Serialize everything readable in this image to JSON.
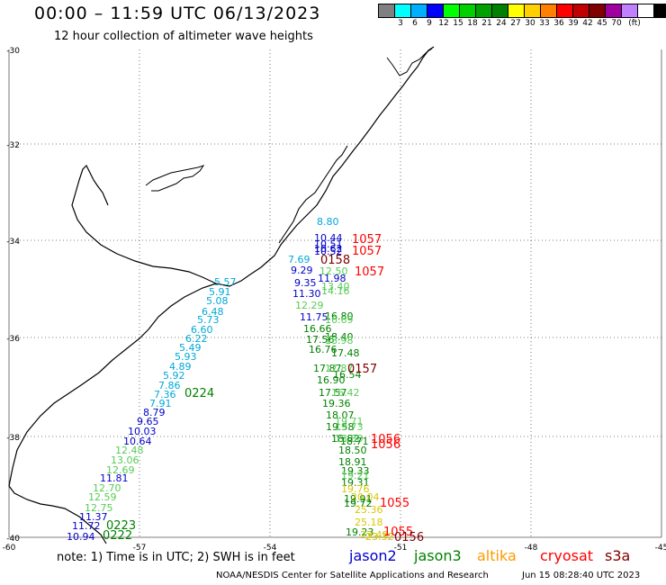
{
  "title": "00:00 – 11:59 UTC 06/13/2023",
  "subtitle": "12 hour collection of altimeter wave heights",
  "legend": {
    "unit": "(ft)",
    "swatches": [
      {
        "color": "#808080",
        "label": ""
      },
      {
        "color": "#00ffff",
        "label": "3"
      },
      {
        "color": "#00b0ff",
        "label": "6"
      },
      {
        "color": "#0000ff",
        "label": "9"
      },
      {
        "color": "#00ff00",
        "label": "12"
      },
      {
        "color": "#00d000",
        "label": "15"
      },
      {
        "color": "#00a000",
        "label": "18"
      },
      {
        "color": "#008000",
        "label": "21"
      },
      {
        "color": "#ffff00",
        "label": "24"
      },
      {
        "color": "#ffd000",
        "label": "27"
      },
      {
        "color": "#ff8000",
        "label": "30"
      },
      {
        "color": "#ff0000",
        "label": "33"
      },
      {
        "color": "#c00000",
        "label": "36"
      },
      {
        "color": "#800000",
        "label": "39"
      },
      {
        "color": "#a000a0",
        "label": "42"
      },
      {
        "color": "#c080ff",
        "label": "45"
      },
      {
        "color": "#ffffff",
        "label": "70"
      },
      {
        "color": "#000000",
        "label": ""
      }
    ]
  },
  "axes": {
    "lat_labels": [
      "-30",
      "-32",
      "-34",
      "-36",
      "-38",
      "-40"
    ],
    "lon_labels": [
      "-60",
      "-57",
      "-54",
      "-51",
      "-48",
      "-45"
    ]
  },
  "colors": {
    "jason2": "#0000c8",
    "jason3": "#008000",
    "altika": "#ff9900",
    "cryosat": "#ff0000",
    "s3a": "#800000",
    "cyan": "#00a8d8",
    "lightgreen": "#55cc55",
    "yellow": "#d8c800",
    "coast": "#000000",
    "grid": "#555555"
  },
  "track_values": [
    {
      "text": "8.80",
      "c": "cyan"
    },
    {
      "text": "10.44",
      "c": "jason2"
    },
    {
      "text": "10.51",
      "c": "jason2"
    },
    {
      "text": "10.62",
      "c": "jason2"
    },
    {
      "text": "10.52",
      "c": "jason2"
    },
    {
      "text": "7.69",
      "c": "cyan"
    },
    {
      "text": "9.29",
      "c": "jason2"
    },
    {
      "text": "12.50",
      "c": "lightgreen"
    },
    {
      "text": "11.98",
      "c": "jason2"
    },
    {
      "text": "9.35",
      "c": "jason2"
    },
    {
      "text": "13.40",
      "c": "lightgreen"
    },
    {
      "text": "14.16",
      "c": "lightgreen"
    },
    {
      "text": "11.30",
      "c": "jason2"
    },
    {
      "text": "12.29",
      "c": "lightgreen"
    },
    {
      "text": "11.75",
      "c": "jason2"
    },
    {
      "text": "16.80",
      "c": "jason3"
    },
    {
      "text": "16.69",
      "c": "lightgreen"
    },
    {
      "text": "16.66",
      "c": "jason3"
    },
    {
      "text": "17.56",
      "c": "jason3"
    },
    {
      "text": "18.40",
      "c": "jason3"
    },
    {
      "text": "18.98",
      "c": "lightgreen"
    },
    {
      "text": "16.76",
      "c": "jason3"
    },
    {
      "text": "17.48",
      "c": "jason3"
    },
    {
      "text": "17.87",
      "c": "jason3"
    },
    {
      "text": "17.87",
      "c": "lightgreen"
    },
    {
      "text": "16.54",
      "c": "jason3"
    },
    {
      "text": "16.90",
      "c": "jason3"
    },
    {
      "text": "17.57",
      "c": "jason3"
    },
    {
      "text": "16.42",
      "c": "lightgreen"
    },
    {
      "text": "19.36",
      "c": "jason3"
    },
    {
      "text": "18.07",
      "c": "jason3"
    },
    {
      "text": "19.71",
      "c": "lightgreen"
    },
    {
      "text": "19.58",
      "c": "jason3"
    },
    {
      "text": "19.73",
      "c": "lightgreen"
    },
    {
      "text": "18.82",
      "c": "jason3"
    },
    {
      "text": "18.80",
      "c": "lightgreen"
    },
    {
      "text": "18.71",
      "c": "jason3"
    },
    {
      "text": "18.50",
      "c": "jason3"
    },
    {
      "text": "18.91",
      "c": "jason3"
    },
    {
      "text": "19.33",
      "c": "jason3"
    },
    {
      "text": "19.21",
      "c": "lightgreen"
    },
    {
      "text": "19.31",
      "c": "jason3"
    },
    {
      "text": "19.76",
      "c": "yellow"
    },
    {
      "text": "19.91",
      "c": "jason3"
    },
    {
      "text": "20.04",
      "c": "yellow"
    },
    {
      "text": "19.72",
      "c": "jason3"
    },
    {
      "text": "25.36",
      "c": "yellow"
    },
    {
      "text": "25.18",
      "c": "yellow"
    },
    {
      "text": "19.23",
      "c": "jason3"
    },
    {
      "text": "23.49",
      "c": "yellow"
    },
    {
      "text": "23.32",
      "c": "yellow"
    },
    {
      "text": "5.57",
      "c": "cyan"
    },
    {
      "text": "5.91",
      "c": "cyan"
    },
    {
      "text": "5.08",
      "c": "cyan"
    },
    {
      "text": "6.48",
      "c": "cyan"
    },
    {
      "text": "5.73",
      "c": "cyan"
    },
    {
      "text": "6.60",
      "c": "cyan"
    },
    {
      "text": "6.22",
      "c": "cyan"
    },
    {
      "text": "5.49",
      "c": "cyan"
    },
    {
      "text": "5.93",
      "c": "cyan"
    },
    {
      "text": "4.89",
      "c": "cyan"
    },
    {
      "text": "5.92",
      "c": "cyan"
    },
    {
      "text": "7.86",
      "c": "cyan"
    },
    {
      "text": "7.36",
      "c": "cyan"
    },
    {
      "text": "7.91",
      "c": "cyan"
    },
    {
      "text": "8.79",
      "c": "jason2"
    },
    {
      "text": "9.65",
      "c": "jason2"
    },
    {
      "text": "10.03",
      "c": "jason2"
    },
    {
      "text": "10.64",
      "c": "jason2"
    },
    {
      "text": "12.48",
      "c": "lightgreen"
    },
    {
      "text": "13.06",
      "c": "lightgreen"
    },
    {
      "text": "12.69",
      "c": "lightgreen"
    },
    {
      "text": "11.81",
      "c": "jason2"
    },
    {
      "text": "12.70",
      "c": "lightgreen"
    },
    {
      "text": "12.59",
      "c": "lightgreen"
    },
    {
      "text": "12.75",
      "c": "lightgreen"
    },
    {
      "text": "11.37",
      "c": "jason2"
    },
    {
      "text": "11.72",
      "c": "jason2"
    },
    {
      "text": "10.94",
      "c": "jason2"
    }
  ],
  "time_labels": [
    {
      "text": "1057",
      "c": "cryosat"
    },
    {
      "text": "1057",
      "c": "cryosat"
    },
    {
      "text": "0158",
      "c": "s3a"
    },
    {
      "text": "1057",
      "c": "cryosat"
    },
    {
      "text": "0157",
      "c": "s3a"
    },
    {
      "text": "1056",
      "c": "cryosat"
    },
    {
      "text": "1056",
      "c": "cryosat"
    },
    {
      "text": "1055",
      "c": "cryosat"
    },
    {
      "text": "1055",
      "c": "cryosat"
    },
    {
      "text": "0156",
      "c": "s3a"
    },
    {
      "text": "0224",
      "c": "jason3"
    },
    {
      "text": "0223",
      "c": "jason3"
    },
    {
      "text": "0222",
      "c": "jason3"
    }
  ],
  "footer": {
    "note": "note:  1) Time is in UTC;  2) SWH is in feet",
    "satellites": [
      {
        "name": "jason2",
        "c": "jason2"
      },
      {
        "name": "jason3",
        "c": "jason3"
      },
      {
        "name": "altika",
        "c": "altika"
      },
      {
        "name": "cryosat",
        "c": "cryosat"
      },
      {
        "name": "s3a",
        "c": "s3a"
      }
    ],
    "credit": "NOAA/NESDIS Center for Satellite Applications and Research",
    "timestamp": "Jun 15 08:28:40 UTC 2023"
  }
}
